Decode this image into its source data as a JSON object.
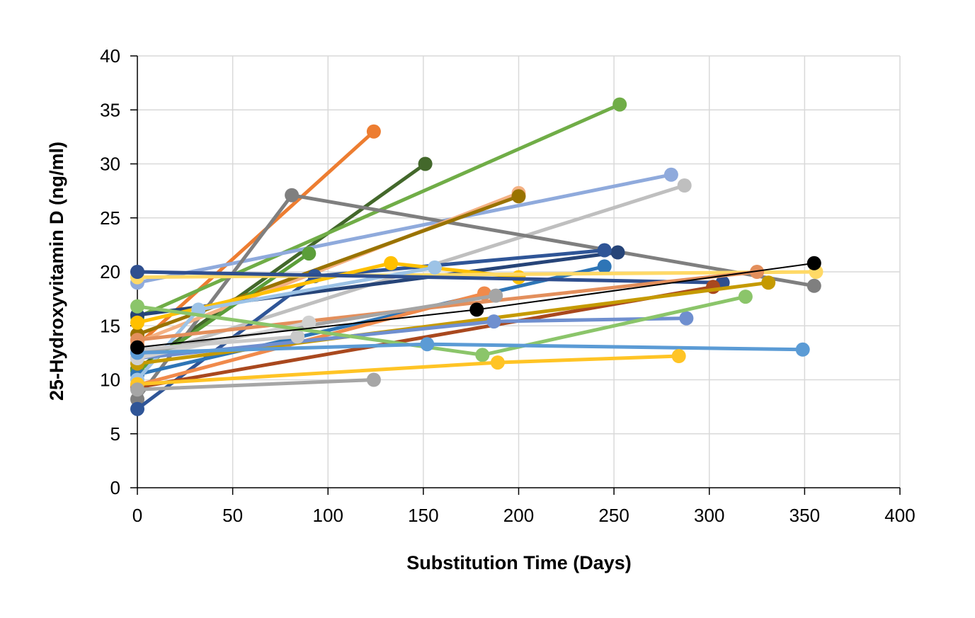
{
  "chart_data": {
    "type": "line",
    "title": "",
    "xlabel": "Substitution Time (Days)",
    "ylabel": "25-Hydroxyvitamin D (ng/ml)",
    "xlim": [
      0,
      400
    ],
    "ylim": [
      0,
      40
    ],
    "xticks": [
      0,
      50,
      100,
      150,
      200,
      250,
      300,
      350,
      400
    ],
    "yticks": [
      0,
      5,
      10,
      15,
      20,
      25,
      30,
      35,
      40
    ],
    "grid": true,
    "legend": "none",
    "series": [
      {
        "color": "#ED7D31",
        "x": [
          0,
          124
        ],
        "y": [
          13.2,
          33.0
        ]
      },
      {
        "color": "#43682B",
        "x": [
          0,
          151
        ],
        "y": [
          11.0,
          30.0
        ]
      },
      {
        "color": "#70AD47",
        "x": [
          0,
          253
        ],
        "y": [
          15.8,
          35.5
        ]
      },
      {
        "color": "#8FAADC",
        "x": [
          0,
          280
        ],
        "y": [
          19.0,
          29.0
        ]
      },
      {
        "color": "#BFBFBF",
        "x": [
          0,
          287
        ],
        "y": [
          12.0,
          28.0
        ]
      },
      {
        "color": "#7F7F7F",
        "x": [
          0,
          81,
          355
        ],
        "y": [
          8.2,
          27.1,
          18.7
        ]
      },
      {
        "color": "#F4B183",
        "x": [
          0,
          200
        ],
        "y": [
          13.5,
          27.3
        ]
      },
      {
        "color": "#997300",
        "x": [
          0,
          200
        ],
        "y": [
          14.2,
          27.0
        ]
      },
      {
        "color": "#5B9E3A",
        "x": [
          0,
          90
        ],
        "y": [
          10.8,
          21.7
        ]
      },
      {
        "color": "#264478",
        "x": [
          0,
          252
        ],
        "y": [
          16.0,
          21.8
        ]
      },
      {
        "color": "#2F5597",
        "x": [
          0,
          93,
          245
        ],
        "y": [
          7.3,
          19.6,
          22.0
        ]
      },
      {
        "color": "#2E75B6",
        "x": [
          0,
          245
        ],
        "y": [
          10.5,
          20.5
        ]
      },
      {
        "color": "#FFC000",
        "x": [
          0,
          133,
          200
        ],
        "y": [
          15.3,
          20.8,
          19.5
        ]
      },
      {
        "color": "#FFD966",
        "x": [
          0,
          356
        ],
        "y": [
          19.5,
          20.0
        ]
      },
      {
        "color": "#9DC3E6",
        "x": [
          0,
          32,
          156
        ],
        "y": [
          10.0,
          16.5,
          20.4
        ]
      },
      {
        "color": "#2F4F8F",
        "x": [
          0,
          307
        ],
        "y": [
          20.0,
          19.0
        ]
      },
      {
        "color": "#F08A4B",
        "x": [
          0,
          182
        ],
        "y": [
          9.5,
          18.0
        ]
      },
      {
        "color": "#E38F5C",
        "x": [
          0,
          325
        ],
        "y": [
          13.7,
          20.0
        ]
      },
      {
        "color": "#A5A5A5",
        "x": [
          0,
          188
        ],
        "y": [
          12.5,
          17.8
        ]
      },
      {
        "color": "#A9481E",
        "x": [
          0,
          302
        ],
        "y": [
          9.3,
          18.6
        ]
      },
      {
        "color": "#C59A00",
        "x": [
          0,
          331
        ],
        "y": [
          11.5,
          19.0
        ]
      },
      {
        "color": "#6F8FCF",
        "x": [
          0,
          187,
          288
        ],
        "y": [
          12.0,
          15.4,
          15.7
        ]
      },
      {
        "color": "#D0D0D0",
        "x": [
          0,
          90
        ],
        "y": [
          12.0,
          15.3
        ]
      },
      {
        "color": "#C9C9C9",
        "x": [
          0,
          84
        ],
        "y": [
          12.8,
          14.0
        ]
      },
      {
        "color": "#8BC56A",
        "x": [
          0,
          181,
          319
        ],
        "y": [
          16.8,
          12.3,
          17.7
        ]
      },
      {
        "color": "#5B9BD5",
        "x": [
          0,
          152,
          349
        ],
        "y": [
          12.5,
          13.3,
          12.8
        ]
      },
      {
        "color": "#FFC425",
        "x": [
          0,
          189,
          284
        ],
        "y": [
          9.6,
          11.6,
          12.2
        ]
      },
      {
        "color": "#A6A6A6",
        "x": [
          0,
          124
        ],
        "y": [
          9.1,
          10.0
        ]
      },
      {
        "color": "#000000",
        "x": [
          0,
          178,
          355
        ],
        "y": [
          13.0,
          16.5,
          20.8
        ],
        "thin": true
      }
    ]
  }
}
